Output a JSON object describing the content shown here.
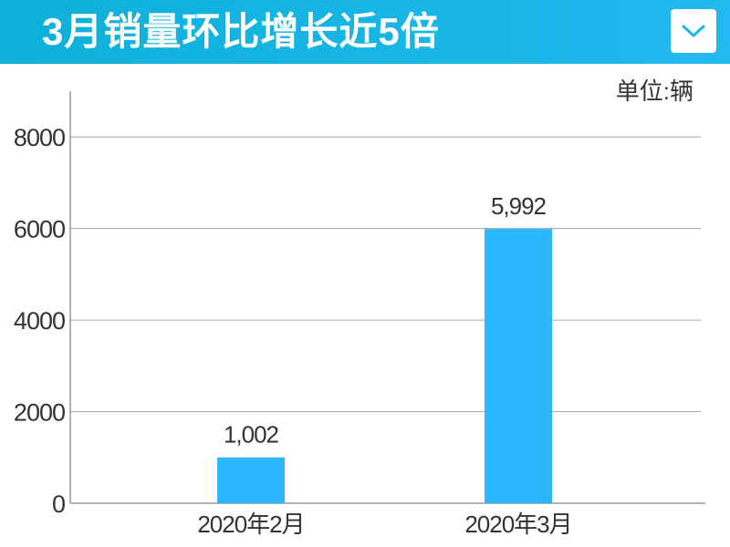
{
  "header": {
    "title": "3月销量环比增长近5倍",
    "dropdown_icon": "chevron-down-icon",
    "accent_color": "#19b6e6"
  },
  "unit_label": "单位:辆",
  "chart_data": {
    "type": "bar",
    "title": "3月销量环比增长近5倍",
    "xlabel": "",
    "ylabel": "",
    "categories": [
      "2020年2月",
      "2020年3月"
    ],
    "values": [
      1002,
      5992
    ],
    "value_labels": [
      "1,002",
      "5,992"
    ],
    "ylim": [
      0,
      9000
    ],
    "yticks": [
      0,
      2000,
      4000,
      6000,
      8000
    ],
    "ytick_labels": [
      "0",
      "2000",
      "4000",
      "6000",
      "8000"
    ],
    "grid": true,
    "bar_color": "#2db7ff"
  }
}
